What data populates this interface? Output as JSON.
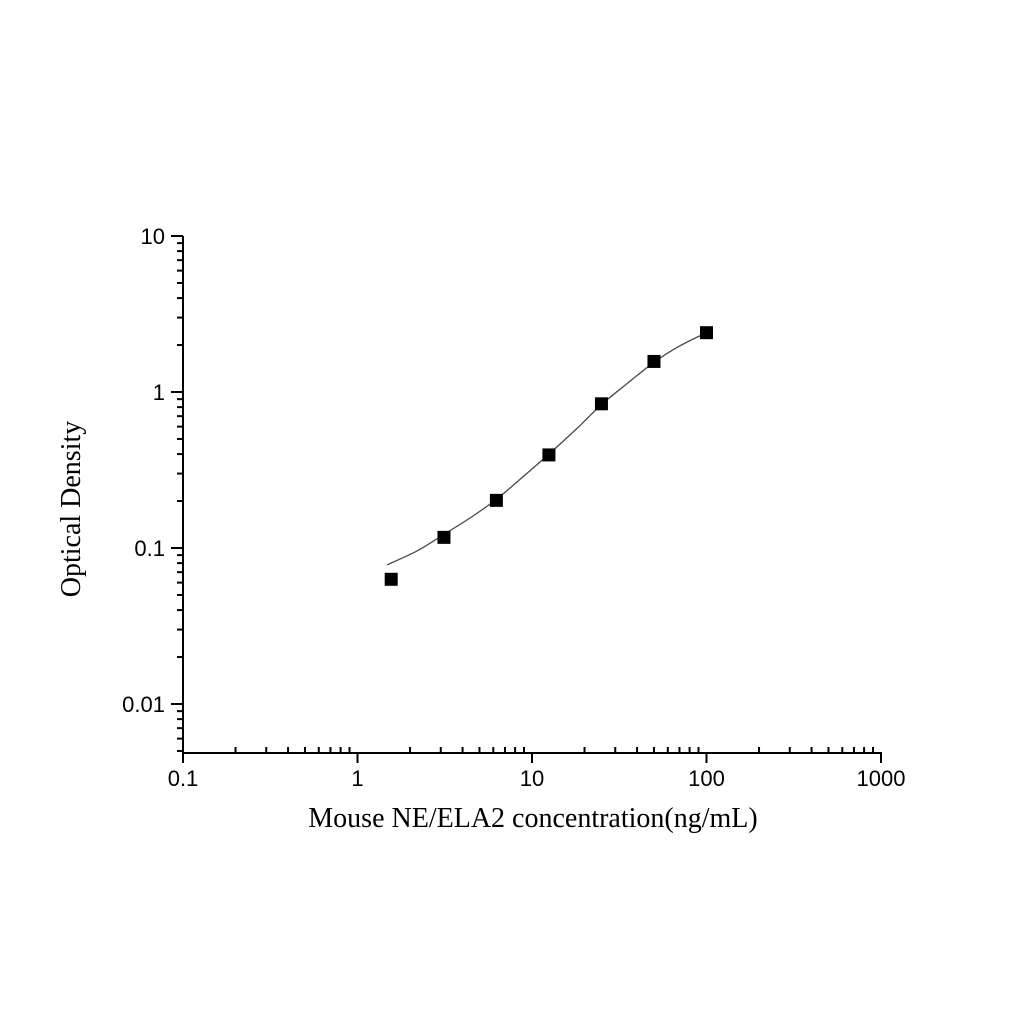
{
  "chart_data": {
    "type": "scatter",
    "title": "",
    "xlabel": "Mouse NE/ELA2 concentration(ng/mL)",
    "ylabel": "Optical Density",
    "x_scale": "log",
    "y_scale": "log",
    "xlim": [
      0.1,
      1000
    ],
    "ylim": [
      0.0048,
      10
    ],
    "x_ticks": [
      0.1,
      1,
      10,
      100,
      1000
    ],
    "x_tick_labels": [
      "0.1",
      "1",
      "10",
      "100",
      "1000"
    ],
    "y_ticks": [
      10,
      1,
      0.1,
      0.01
    ],
    "y_tick_labels": [
      "10",
      "1",
      "0.1",
      "0.01"
    ],
    "grid": false,
    "legend": false,
    "background_color": "#ffffff",
    "axis_color": "#000000",
    "marker_color": "#000000",
    "curve_color": "#4a4a4a",
    "series": [
      {
        "name": "standard-points",
        "kind": "scatter",
        "marker": "filled-square",
        "x": [
          1.56,
          3.13,
          6.25,
          12.5,
          25,
          50,
          100
        ],
        "y": [
          0.063,
          0.117,
          0.202,
          0.395,
          0.84,
          1.57,
          2.4
        ]
      },
      {
        "name": "fit-curve",
        "kind": "line",
        "x": [
          1.48,
          2.2,
          3.12,
          4.5,
          6.25,
          9,
          12.5,
          18,
          25,
          35,
          50,
          70,
          100
        ],
        "y": [
          0.078,
          0.096,
          0.122,
          0.158,
          0.205,
          0.29,
          0.4,
          0.58,
          0.83,
          1.13,
          1.55,
          1.97,
          2.4
        ]
      }
    ]
  }
}
